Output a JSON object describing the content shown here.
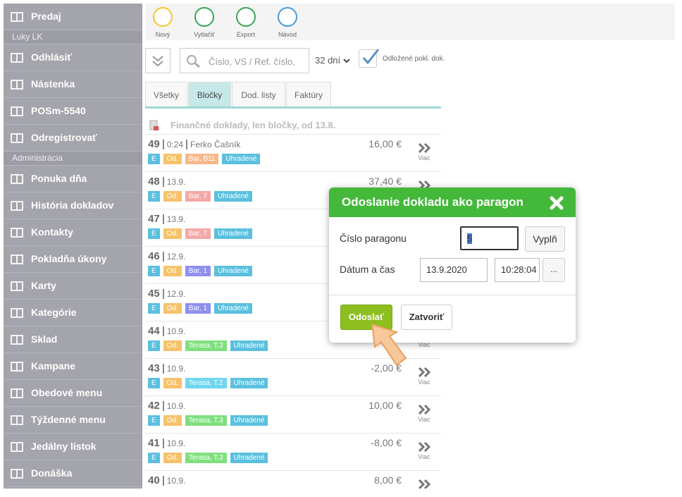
{
  "sidebar": [
    {
      "label": "Predaj"
    },
    {
      "section": "Luky LK"
    },
    {
      "label": "Odhlásiť"
    },
    {
      "label": "Nástenka"
    },
    {
      "label": "POSm-5540"
    },
    {
      "label": "Odregistrovať"
    },
    {
      "section": "Administrácia"
    },
    {
      "label": "Ponuka dňa"
    },
    {
      "label": "História dokladov"
    },
    {
      "label": "Kontakty"
    },
    {
      "label": "Pokladňa úkony"
    },
    {
      "label": "Karty"
    },
    {
      "label": "Kategórie"
    },
    {
      "label": "Sklad"
    },
    {
      "label": "Kampane"
    },
    {
      "label": "Obedové menu"
    },
    {
      "label": "Týždenné menu"
    },
    {
      "label": "Jedálny lístok"
    },
    {
      "label": "Donáška"
    }
  ],
  "toolbar": [
    {
      "label": "Nový",
      "color": "#f3c633"
    },
    {
      "label": "Vytlačiť",
      "color": "#3aa655"
    },
    {
      "label": "Export",
      "color": "#3aa655"
    },
    {
      "label": "Návod",
      "color": "#4a9ad6"
    }
  ],
  "filter": {
    "search_placeholder": "Číslo, VS / Ref. číslo,",
    "period": "32 dní",
    "checkbox_label": "Odložené pokl. dok."
  },
  "tabs": [
    {
      "label": "Všetky",
      "active": false
    },
    {
      "label": "Bločky",
      "active": true
    },
    {
      "label": "Dod. listy",
      "active": false
    },
    {
      "label": "Faktúry",
      "active": false
    }
  ],
  "list": {
    "heading": "Finančné doklady, len bločky, od 13.8.",
    "more_label": "Viac",
    "rows": [
      {
        "number": "49",
        "date": "0:24",
        "person": "Ferko Čašník",
        "amount": "16,00 €",
        "tags": [
          {
            "text": "E",
            "color": "#5bc0de"
          },
          {
            "text": "Od.",
            "color": "#f5c26b"
          },
          {
            "text": "Bar, B11",
            "color": "#f7b88a"
          },
          {
            "text": "Uhradené",
            "color": "#5bc0de"
          }
        ]
      },
      {
        "number": "48",
        "date": "13.9.",
        "amount": "37,40 €",
        "tags": [
          {
            "text": "E",
            "color": "#5bc0de"
          },
          {
            "text": "Od.",
            "color": "#f5c26b"
          },
          {
            "text": "Bar, 7",
            "color": "#f5a8a8"
          },
          {
            "text": "Uhradené",
            "color": "#5bc0de"
          }
        ]
      },
      {
        "number": "47",
        "date": "13.9.",
        "tags": [
          {
            "text": "E",
            "color": "#5bc0de"
          },
          {
            "text": "Od.",
            "color": "#f5c26b"
          },
          {
            "text": "Bar, 7",
            "color": "#f5a8a8"
          },
          {
            "text": "Uhradené",
            "color": "#5bc0de"
          }
        ]
      },
      {
        "number": "46",
        "date": "12.9.",
        "tags": [
          {
            "text": "E",
            "color": "#5bc0de"
          },
          {
            "text": "Od.",
            "color": "#f5c26b"
          },
          {
            "text": "Bar, 1",
            "color": "#8f8ff0"
          },
          {
            "text": "Uhradené",
            "color": "#5bc0de"
          }
        ]
      },
      {
        "number": "45",
        "date": "12.9.",
        "tags": [
          {
            "text": "E",
            "color": "#5bc0de"
          },
          {
            "text": "Od.",
            "color": "#f5c26b"
          },
          {
            "text": "Bar, 1",
            "color": "#8f8ff0"
          },
          {
            "text": "Uhradené",
            "color": "#5bc0de"
          }
        ]
      },
      {
        "number": "44",
        "date": "10.9.",
        "tags": [
          {
            "text": "E",
            "color": "#5bc0de"
          },
          {
            "text": "Od.",
            "color": "#f5c26b"
          },
          {
            "text": "Terasa, T.3",
            "color": "#7fe07f"
          },
          {
            "text": "Uhradené",
            "color": "#5bc0de"
          }
        ]
      },
      {
        "number": "43",
        "date": "10.9.",
        "amount": "-2,00 €",
        "tags": [
          {
            "text": "E",
            "color": "#5bc0de"
          },
          {
            "text": "Od.",
            "color": "#f5c26b"
          },
          {
            "text": "Terasa, T.2",
            "color": "#6fd6f0"
          },
          {
            "text": "Uhradené",
            "color": "#5bc0de"
          }
        ]
      },
      {
        "number": "42",
        "date": "10.9.",
        "amount": "10,00 €",
        "tags": [
          {
            "text": "E",
            "color": "#5bc0de"
          },
          {
            "text": "Od.",
            "color": "#f5c26b"
          },
          {
            "text": "Terasa, T.3",
            "color": "#7fe07f"
          },
          {
            "text": "Uhradené",
            "color": "#5bc0de"
          }
        ]
      },
      {
        "number": "41",
        "date": "10.9.",
        "amount": "-8,00 €",
        "tags": [
          {
            "text": "E",
            "color": "#5bc0de"
          },
          {
            "text": "Od.",
            "color": "#f5c26b"
          },
          {
            "text": "Terasa, T.3",
            "color": "#7fe07f"
          },
          {
            "text": "Uhradené",
            "color": "#5bc0de"
          }
        ]
      },
      {
        "number": "40",
        "date": "10.9.",
        "amount": "8,00 €",
        "tags": []
      }
    ]
  },
  "dialog": {
    "title": "Odoslanie dokladu ako paragon",
    "number_label": "Číslo paragonu",
    "number_value": "5",
    "fill_button": "Vyplň",
    "datetime_label": "Dátum a čas",
    "date_value": "13.9.2020",
    "time_value": "10:28:04",
    "more_button": "...",
    "send_button": "Odoslať",
    "close_button": "Zatvoriť"
  }
}
